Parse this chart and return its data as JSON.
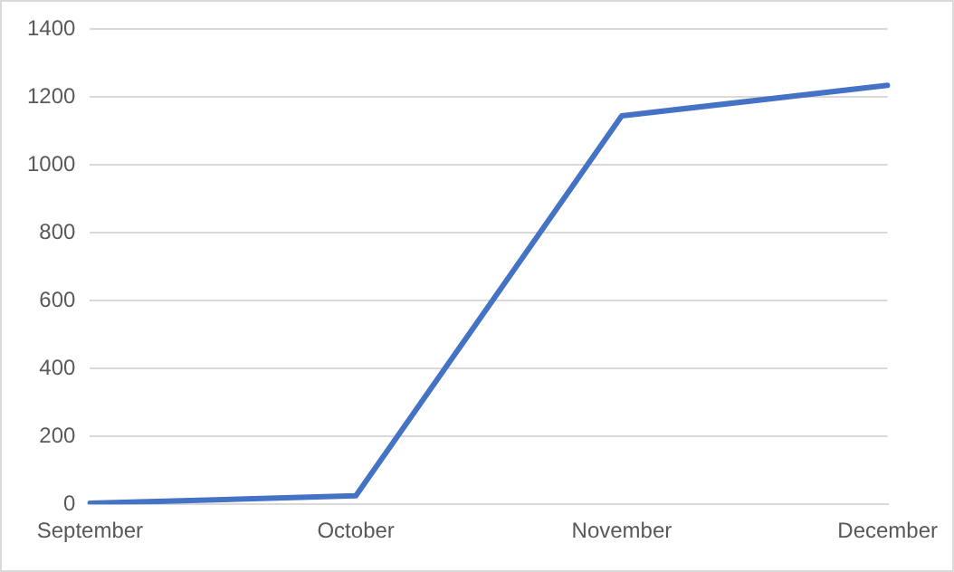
{
  "chart_data": {
    "type": "line",
    "categories": [
      "September",
      "October",
      "November",
      "December"
    ],
    "series": [
      {
        "color": "#4472c4",
        "values": [
          3,
          25,
          1145,
          1235
        ]
      }
    ],
    "ylim": [
      0,
      1400
    ],
    "yticks": [
      0,
      200,
      400,
      600,
      800,
      1000,
      1200,
      1400
    ],
    "grid": "y",
    "legend": false,
    "marker": "none"
  }
}
